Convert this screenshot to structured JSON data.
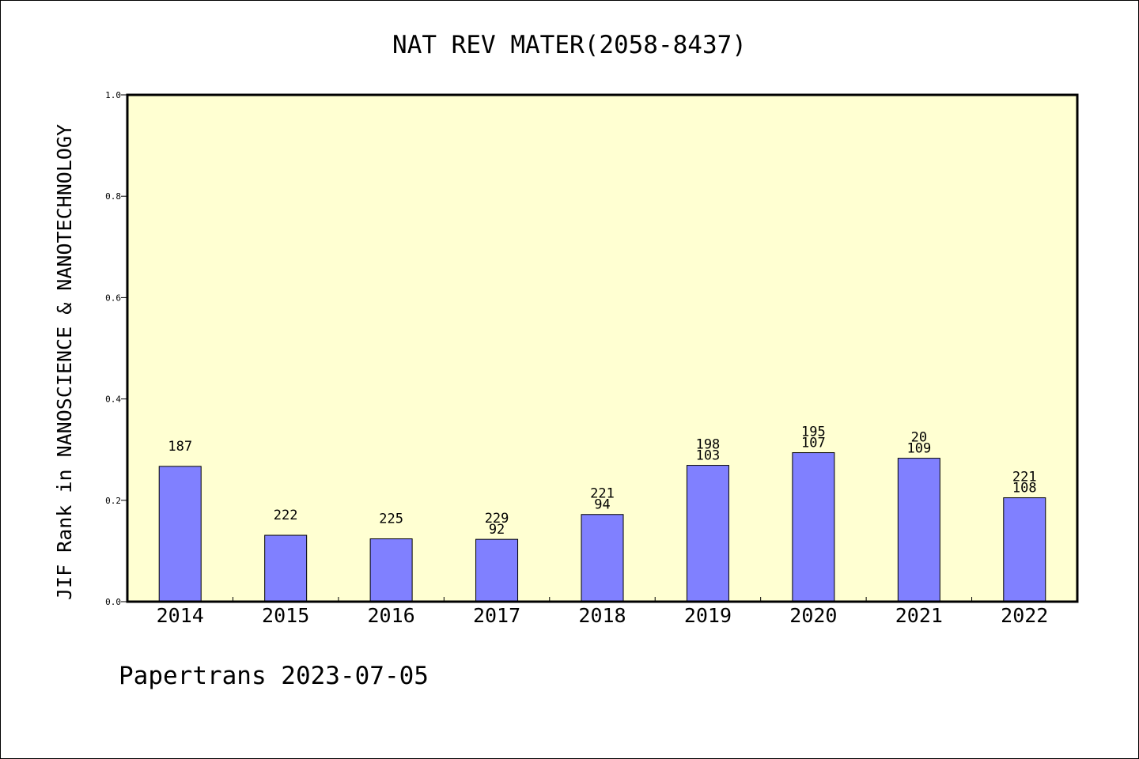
{
  "chart_data": {
    "type": "bar",
    "title": "NAT REV MATER(2058-8437)",
    "ylabel": "JIF Rank in NANOSCIENCE & NANOTECHNOLOGY",
    "xlabel": "",
    "ylim": [
      0,
      1.0
    ],
    "yticks": [
      "0.0",
      "0.2",
      "0.4",
      "0.6",
      "0.8",
      "1.0"
    ],
    "categories": [
      "2014",
      "2015",
      "2016",
      "2017",
      "2018",
      "2019",
      "2020",
      "2021",
      "2022"
    ],
    "values": [
      0.267,
      0.131,
      0.124,
      0.123,
      0.172,
      0.269,
      0.294,
      0.283,
      0.205
    ],
    "bar_labels": [
      [
        "187"
      ],
      [
        "222"
      ],
      [
        "225"
      ],
      [
        "229",
        "92"
      ],
      [
        "221",
        "94"
      ],
      [
        "198",
        "103"
      ],
      [
        "195",
        "107"
      ],
      [
        "20",
        "109"
      ],
      [
        "221",
        "108"
      ]
    ],
    "grid": false,
    "colors": {
      "plot_bg": "#ffffd2",
      "bar_fill": "#8080ff",
      "bar_stroke": "#000000"
    }
  },
  "footer": {
    "text": "Papertrans 2023-07-05"
  }
}
